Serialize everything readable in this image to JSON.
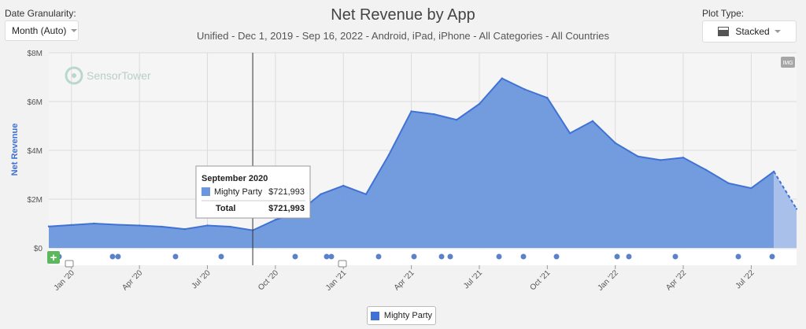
{
  "controls": {
    "granularity_label": "Date Granularity:",
    "granularity_value": "Month (Auto)",
    "plot_type_label": "Plot Type:",
    "plot_type_value": "Stacked"
  },
  "watermark": "SensorTower",
  "img_badge": "IMG",
  "tooltip": {
    "title": "September 2020",
    "series_name": "Mighty Party",
    "series_value": "$721,993",
    "total_label": "Total",
    "total_value": "$721,993"
  },
  "colors": {
    "series": "#3f72d4",
    "fill": "#6b97dd",
    "projected_fill": "#a9c1ea",
    "marker_green": "#5cb85c"
  },
  "chart_data": {
    "type": "area",
    "title": "Net Revenue by App",
    "subtitle": "Unified - Dec 1, 2019 - Sep 16, 2022 - Android, iPad, iPhone - All Categories - All Countries",
    "ylabel": "Net Revenue",
    "ylim": [
      0,
      8000000
    ],
    "y_ticks": [
      {
        "v": 0,
        "label": "$0"
      },
      {
        "v": 2000000,
        "label": "$2M"
      },
      {
        "v": 4000000,
        "label": "$4M"
      },
      {
        "v": 6000000,
        "label": "$6M"
      },
      {
        "v": 8000000,
        "label": "$8M"
      }
    ],
    "x_ticks": [
      {
        "date": "2020-01",
        "label": "Jan '20"
      },
      {
        "date": "2020-04",
        "label": "Apr '20"
      },
      {
        "date": "2020-07",
        "label": "Jul '20"
      },
      {
        "date": "2020-10",
        "label": "Oct '20"
      },
      {
        "date": "2021-01",
        "label": "Jan '21"
      },
      {
        "date": "2021-04",
        "label": "Apr '21"
      },
      {
        "date": "2021-07",
        "label": "Jul '21"
      },
      {
        "date": "2021-10",
        "label": "Oct '21"
      },
      {
        "date": "2022-01",
        "label": "Jan '22"
      },
      {
        "date": "2022-04",
        "label": "Apr '22"
      },
      {
        "date": "2022-07",
        "label": "Jul '22"
      }
    ],
    "x": [
      "2019-12",
      "2020-01",
      "2020-02",
      "2020-03",
      "2020-04",
      "2020-05",
      "2020-06",
      "2020-07",
      "2020-08",
      "2020-09",
      "2020-10",
      "2020-11",
      "2020-12",
      "2021-01",
      "2021-02",
      "2021-03",
      "2021-04",
      "2021-05",
      "2021-06",
      "2021-07",
      "2021-08",
      "2021-09",
      "2021-10",
      "2021-11",
      "2021-12",
      "2022-01",
      "2022-02",
      "2022-03",
      "2022-04",
      "2022-05",
      "2022-06",
      "2022-07",
      "2022-08",
      "2022-09"
    ],
    "series": [
      {
        "name": "Mighty Party",
        "values": [
          880000,
          940000,
          1000000,
          950000,
          920000,
          870000,
          770000,
          920000,
          870000,
          721993,
          1150000,
          1450000,
          2200000,
          2550000,
          2200000,
          3800000,
          5600000,
          5480000,
          5250000,
          5900000,
          6950000,
          6500000,
          6150000,
          4700000,
          5200000,
          4300000,
          3750000,
          3600000,
          3700000,
          3200000,
          2650000,
          2450000,
          3130000,
          1600000
        ]
      }
    ],
    "projected_from": "2022-08",
    "hover_x": "2020-09",
    "grid": true,
    "legend_position": "bottom-center"
  }
}
